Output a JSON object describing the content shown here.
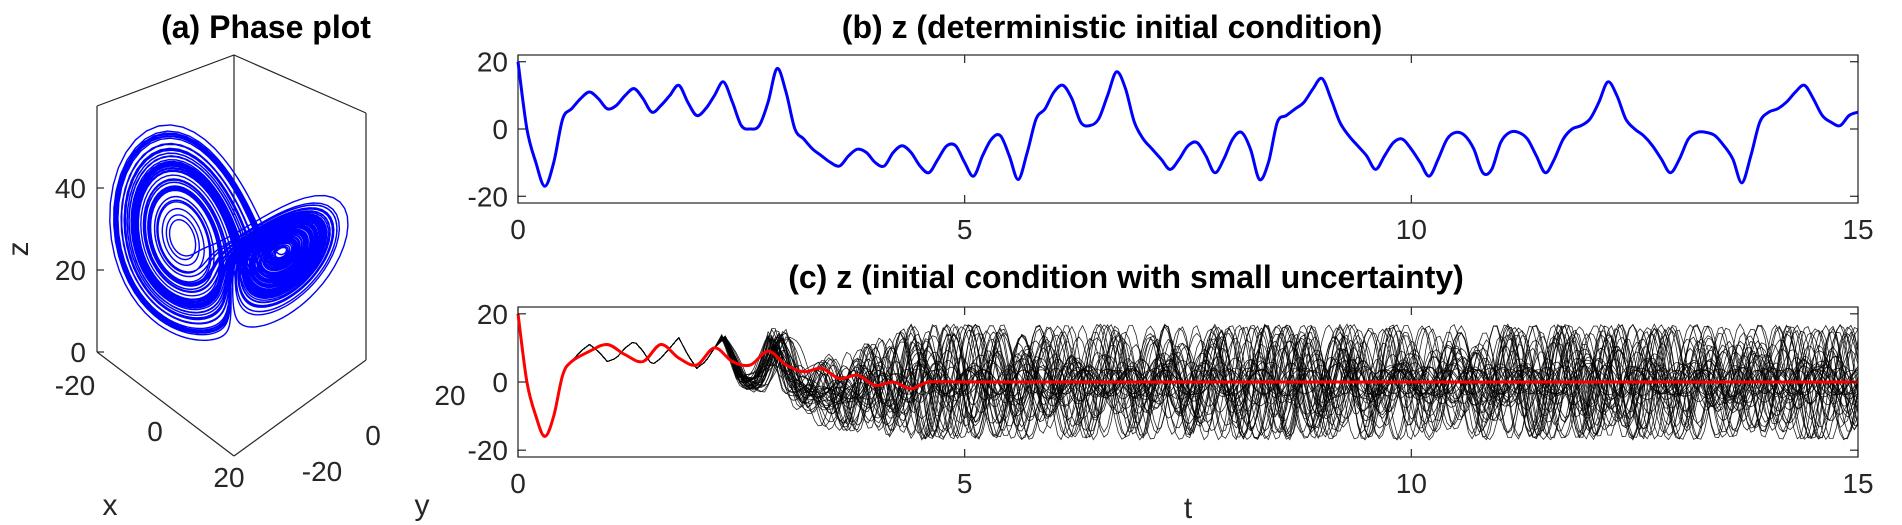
{
  "chart_data": [
    {
      "panel": "a",
      "type": "line",
      "title": "(a) Phase plot",
      "xlabel": "x",
      "ylabel": "y",
      "zlabel": "z",
      "x_ticks": [
        "-20",
        "0",
        "20"
      ],
      "y_ticks": [
        "-20",
        "0",
        "20"
      ],
      "z_ticks": [
        "0",
        "20",
        "40"
      ],
      "xlim": [
        -20,
        20
      ],
      "ylim": [
        -27,
        27
      ],
      "zlim": [
        0,
        50
      ],
      "line_color": "#0000ff",
      "note": "Lorenz attractor trajectory, left lobe centre ≈ (-8.5,-8.5,27), right lobe centre ≈ (8.5,8.5,27)"
    },
    {
      "panel": "b",
      "type": "line",
      "title": "(b) z (deterministic initial condition)",
      "xlabel": "",
      "ylabel": "",
      "xlim": [
        0,
        15
      ],
      "ylim": [
        -22,
        22
      ],
      "x_ticks": [
        "0",
        "5",
        "10",
        "15"
      ],
      "y_ticks": [
        "20",
        "0",
        "-20"
      ],
      "series": [
        {
          "color": "#0000ff",
          "x": [
            0,
            0.1,
            0.2,
            0.3,
            0.4,
            0.5,
            0.6,
            0.7,
            0.8,
            0.9,
            1.0,
            1.1,
            1.2,
            1.3,
            1.4,
            1.5,
            1.6,
            1.7,
            1.8,
            1.9,
            2.0,
            2.1,
            2.2,
            2.3,
            2.4,
            2.5,
            2.6,
            2.7,
            2.8,
            2.9,
            3.0,
            3.1,
            3.2,
            3.3,
            3.4,
            3.5,
            3.6,
            3.7,
            3.8,
            3.9,
            4.0,
            4.1,
            4.2,
            4.3,
            4.4,
            4.5,
            4.6,
            4.7,
            4.8,
            4.9,
            5.0,
            5.1,
            5.2,
            5.3,
            5.4,
            5.5,
            5.6,
            5.7,
            5.8,
            5.9,
            6.0,
            6.1,
            6.2,
            6.3,
            6.4,
            6.5,
            6.6,
            6.7,
            6.8,
            6.9,
            7.0,
            7.1,
            7.2,
            7.3,
            7.4,
            7.5,
            7.6,
            7.7,
            7.8,
            7.9,
            8.0,
            8.1,
            8.2,
            8.3,
            8.4,
            8.5,
            8.6,
            8.7,
            8.8,
            8.9,
            9.0,
            9.1,
            9.2,
            9.3,
            9.4,
            9.5,
            9.6,
            9.7,
            9.8,
            9.9,
            10.0,
            10.1,
            10.2,
            10.3,
            10.4,
            10.5,
            10.6,
            10.7,
            10.8,
            10.9,
            11.0,
            11.1,
            11.2,
            11.3,
            11.4,
            11.5,
            11.6,
            11.7,
            11.8,
            11.9,
            12.0,
            12.1,
            12.2,
            12.3,
            12.4,
            12.5,
            12.6,
            12.7,
            12.8,
            12.9,
            13.0,
            13.1,
            13.2,
            13.3,
            13.4,
            13.5,
            13.6,
            13.7,
            13.8,
            13.9,
            14.0,
            14.1,
            14.2,
            14.3,
            14.4,
            14.5,
            14.6,
            14.7,
            14.8,
            14.9,
            15.0
          ],
          "y": [
            20,
            0,
            -10,
            -17,
            -10,
            3,
            6,
            9,
            11,
            9,
            6,
            7,
            10,
            12,
            9,
            5,
            7,
            10,
            13,
            8,
            4,
            6,
            10,
            14,
            8,
            1,
            0,
            1,
            8,
            18,
            11,
            0,
            -3,
            -6,
            -8,
            -10,
            -11,
            -8,
            -6,
            -7,
            -10,
            -11,
            -7,
            -5,
            -7,
            -11,
            -13,
            -9,
            -5,
            -5,
            -10,
            -14,
            -8,
            -3,
            -2,
            -8,
            -15,
            -7,
            3,
            6,
            11,
            13,
            9,
            2,
            1,
            3,
            10,
            17,
            12,
            2,
            -3,
            -6,
            -9,
            -12,
            -9,
            -5,
            -4,
            -8,
            -13,
            -9,
            -3,
            -1,
            -6,
            -15,
            -10,
            2,
            4,
            6,
            8,
            12,
            15,
            9,
            2,
            -2,
            -5,
            -8,
            -12,
            -8,
            -4,
            -3,
            -6,
            -10,
            -14,
            -9,
            -3,
            -1,
            -2,
            -6,
            -13,
            -12,
            -4,
            -1,
            -1,
            -3,
            -8,
            -13,
            -9,
            -3,
            0,
            1,
            3,
            8,
            14,
            10,
            3,
            0,
            -2,
            -5,
            -9,
            -13,
            -9,
            -3,
            -1,
            -1,
            -2,
            -5,
            -9,
            -16,
            -8,
            2,
            5,
            6,
            8,
            11,
            13,
            9,
            4,
            2,
            1,
            4,
            5
          ]
        }
      ]
    },
    {
      "panel": "c",
      "type": "line",
      "title": "(c) z (initial condition with small uncertainty)",
      "xlabel": "t",
      "ylabel": "",
      "xlim": [
        0,
        15
      ],
      "ylim": [
        -22,
        22
      ],
      "x_ticks": [
        "0",
        "5",
        "10",
        "15"
      ],
      "y_ticks": [
        "20",
        "0",
        "-20"
      ],
      "ensemble": {
        "color": "#000000",
        "description": "ensemble of trajectories; spread grows after t≈3 and fills roughly [-19, 19] for t>4"
      },
      "mean_series": {
        "color": "#ff0000",
        "x": [
          0,
          0.1,
          0.2,
          0.3,
          0.4,
          0.5,
          0.6,
          0.8,
          1.0,
          1.2,
          1.4,
          1.6,
          1.8,
          2.0,
          2.2,
          2.4,
          2.6,
          2.8,
          3.0,
          3.2,
          3.4,
          3.6,
          3.8,
          4.0,
          4.2,
          4.4,
          4.6,
          5.0,
          6.0,
          7.0,
          8.0,
          9.0,
          10.0,
          11.0,
          12.0,
          13.0,
          14.0,
          15.0
        ],
        "y": [
          20,
          0,
          -10,
          -16,
          -10,
          2,
          6,
          9,
          11,
          8,
          6,
          11,
          7,
          5,
          10,
          6,
          5,
          9,
          5,
          3,
          4,
          1,
          2,
          -1,
          0,
          -2,
          0,
          0,
          0,
          0,
          0,
          0,
          0,
          0,
          0,
          0,
          0,
          0
        ]
      }
    }
  ]
}
